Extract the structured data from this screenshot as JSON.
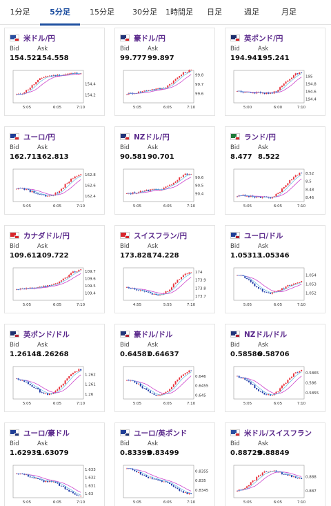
{
  "tabs": [
    {
      "label": "1分足",
      "active": false
    },
    {
      "label": "5分足",
      "active": true
    },
    {
      "label": "15分足",
      "active": false
    },
    {
      "label": "30分足",
      "active": false
    },
    {
      "label": "1時間足",
      "active": false
    },
    {
      "label": "日足",
      "active": false
    },
    {
      "label": "週足",
      "active": false
    },
    {
      "label": "月足",
      "active": false
    }
  ],
  "labels": {
    "bid": "Bid",
    "ask": "Ask"
  },
  "colors": {
    "up": "#e8323c",
    "down": "#1f3aa8",
    "ma_long": "#cc44cc",
    "ma_short": "#4ab0e0",
    "accent": "#1e4fa0",
    "pair": "#5b2a8c"
  },
  "cards": [
    {
      "pair": "米ドル/円",
      "bid": "154.522",
      "ask": "154.558",
      "flags": [
        "#2a4ea0",
        "#d9262c"
      ],
      "chart_data": {
        "type": "candlestick",
        "x_ticks": [
          "5:05",
          "6:05",
          "7:10"
        ],
        "y_ticks": [
          154.2,
          154.4
        ],
        "ylim": [
          154.05,
          154.65
        ],
        "points": [
          154.2,
          154.55,
          154.6
        ]
      }
    },
    {
      "pair": "豪ドル/円",
      "bid": "99.777",
      "ask": "99.897",
      "flags": [
        "#22357a",
        "#d9262c"
      ],
      "chart_data": {
        "type": "candlestick",
        "x_ticks": [
          "5:05",
          "6:05",
          "7:10"
        ],
        "y_ticks": [
          99.6,
          99.7,
          99.8
        ],
        "ylim": [
          99.5,
          99.85
        ],
        "points": [
          99.6,
          99.65,
          99.85
        ]
      }
    },
    {
      "pair": "英ポンド/円",
      "bid": "194.941",
      "ask": "195.241",
      "flags": [
        "#1d2f6f",
        "#d9262c"
      ],
      "chart_data": {
        "type": "candlestick",
        "x_ticks": [
          "5:00",
          "6:00",
          "7:10"
        ],
        "y_ticks": [
          194.4,
          194.6,
          194.8,
          195
        ],
        "ylim": [
          194.3,
          195.15
        ],
        "points": [
          194.6,
          194.55,
          195.1
        ]
      }
    },
    {
      "pair": "ユーロ/円",
      "bid": "162.713",
      "ask": "162.813",
      "flags": [
        "#1f3e96",
        "#d9262c"
      ],
      "chart_data": {
        "type": "candlestick",
        "x_ticks": [
          "5:05",
          "6:05",
          "7:10"
        ],
        "y_ticks": [
          162.4,
          162.6,
          162.8
        ],
        "ylim": [
          162.3,
          162.9
        ],
        "points": [
          162.55,
          162.4,
          162.8
        ]
      }
    },
    {
      "pair": "NZドル/円",
      "bid": "90.581",
      "ask": "90.701",
      "flags": [
        "#22357a",
        "#d9262c"
      ],
      "chart_data": {
        "type": "candlestick",
        "x_ticks": [
          "5:05",
          "6:05",
          "7:10"
        ],
        "y_ticks": [
          90.4,
          90.5,
          90.6
        ],
        "ylim": [
          90.3,
          90.7
        ],
        "points": [
          90.4,
          90.45,
          90.65
        ]
      }
    },
    {
      "pair": "ランド/円",
      "bid": "8.477",
      "ask": "8.522",
      "flags": [
        "#1f7a3a",
        "#d9262c"
      ],
      "chart_data": {
        "type": "candlestick",
        "x_ticks": [
          "5:05",
          "6:05",
          "7:10"
        ],
        "y_ticks": [
          8.46,
          8.48,
          8.5,
          8.52
        ],
        "ylim": [
          8.45,
          8.53
        ],
        "points": [
          8.465,
          8.46,
          8.52
        ]
      }
    },
    {
      "pair": "カナダドル/円",
      "bid": "109.612",
      "ask": "109.722",
      "flags": [
        "#d9262c",
        "#d9262c"
      ],
      "chart_data": {
        "type": "candlestick",
        "x_ticks": [
          "5:05",
          "6:05",
          "7:10"
        ],
        "y_ticks": [
          109.4,
          109.5,
          109.6,
          109.7
        ],
        "ylim": [
          109.3,
          109.75
        ],
        "points": [
          109.45,
          109.5,
          109.72
        ]
      }
    },
    {
      "pair": "スイスフラン/円",
      "bid": "173.828",
      "ask": "174.228",
      "flags": [
        "#d9262c",
        "#d9262c"
      ],
      "chart_data": {
        "type": "candlestick",
        "x_ticks": [
          "4:55",
          "5:55",
          "7:10"
        ],
        "y_ticks": [
          173.7,
          173.8,
          173.9,
          174
        ],
        "ylim": [
          173.65,
          174.05
        ],
        "points": [
          173.8,
          173.72,
          174.0
        ]
      }
    },
    {
      "pair": "ユーロ/ドル",
      "bid": "1.05313",
      "ask": "1.05346",
      "flags": [
        "#1f3e96",
        "#b22234"
      ],
      "chart_data": {
        "type": "candlestick",
        "x_ticks": [
          "5:05",
          "6:05",
          "7:10"
        ],
        "y_ticks": [
          1.052,
          1.053,
          1.054
        ],
        "ylim": [
          1.0512,
          1.0548
        ],
        "points": [
          1.054,
          1.052,
          1.0533
        ]
      }
    },
    {
      "pair": "英ポンド/ドル",
      "bid": "1.26148",
      "ask": "1.26268",
      "flags": [
        "#1d2f6f",
        "#b22234"
      ],
      "chart_data": {
        "type": "candlestick",
        "x_ticks": [
          "5:05",
          "6:05",
          "7:10"
        ],
        "y_ticks": [
          1.26,
          1.261,
          1.262
        ],
        "ylim": [
          1.2595,
          1.2628
        ],
        "points": [
          1.2615,
          1.26,
          1.2625
        ]
      }
    },
    {
      "pair": "豪ドル/ドル",
      "bid": "0.64581",
      "ask": "0.64637",
      "flags": [
        "#22357a",
        "#b22234"
      ],
      "chart_data": {
        "type": "candlestick",
        "x_ticks": [
          "5:05",
          "6:05",
          "7:10"
        ],
        "y_ticks": [
          0.645,
          0.6455,
          0.646
        ],
        "ylim": [
          0.6448,
          0.6465
        ],
        "points": [
          0.6458,
          0.645,
          0.6463
        ]
      }
    },
    {
      "pair": "NZドル/ドル",
      "bid": "0.58586",
      "ask": "0.58706",
      "flags": [
        "#22357a",
        "#b22234"
      ],
      "chart_data": {
        "type": "candlestick",
        "x_ticks": [
          "5:05",
          "6:05",
          "7:10"
        ],
        "y_ticks": [
          0.5855,
          0.586,
          0.5865
        ],
        "ylim": [
          0.5852,
          0.5868
        ],
        "points": [
          0.5863,
          0.5854,
          0.5866
        ]
      }
    },
    {
      "pair": "ユーロ/豪ドル",
      "bid": "1.62939",
      "ask": "1.63079",
      "flags": [
        "#1f3e96",
        "#22357a"
      ],
      "chart_data": {
        "type": "candlestick",
        "x_ticks": [
          "5:05",
          "6:05",
          "7:10"
        ],
        "y_ticks": [
          1.63,
          1.631,
          1.632,
          1.633
        ],
        "ylim": [
          1.6295,
          1.6335
        ],
        "points": [
          1.6325,
          1.6315,
          1.6298
        ]
      }
    },
    {
      "pair": "ユーロ/英ポンド",
      "bid": "0.83399",
      "ask": "0.83499",
      "flags": [
        "#1f3e96",
        "#1d2f6f"
      ],
      "chart_data": {
        "type": "candlestick",
        "x_ticks": [
          "5:05",
          "6:05",
          "7:10"
        ],
        "y_ticks": [
          0.8345,
          0.835,
          0.8355
        ],
        "ylim": [
          0.8341,
          0.8358
        ],
        "points": [
          0.8356,
          0.835,
          0.8343
        ]
      }
    },
    {
      "pair": "米ドル/スイスフラン",
      "bid": "0.88729",
      "ask": "0.88849",
      "flags": [
        "#2a4ea0",
        "#d9262c"
      ],
      "chart_data": {
        "type": "candlestick",
        "x_ticks": [
          "5:05",
          "6:05",
          "7:10"
        ],
        "y_ticks": [
          0.887,
          0.888
        ],
        "ylim": [
          0.8865,
          0.8888
        ],
        "points": [
          0.887,
          0.8884,
          0.8879
        ]
      }
    }
  ]
}
